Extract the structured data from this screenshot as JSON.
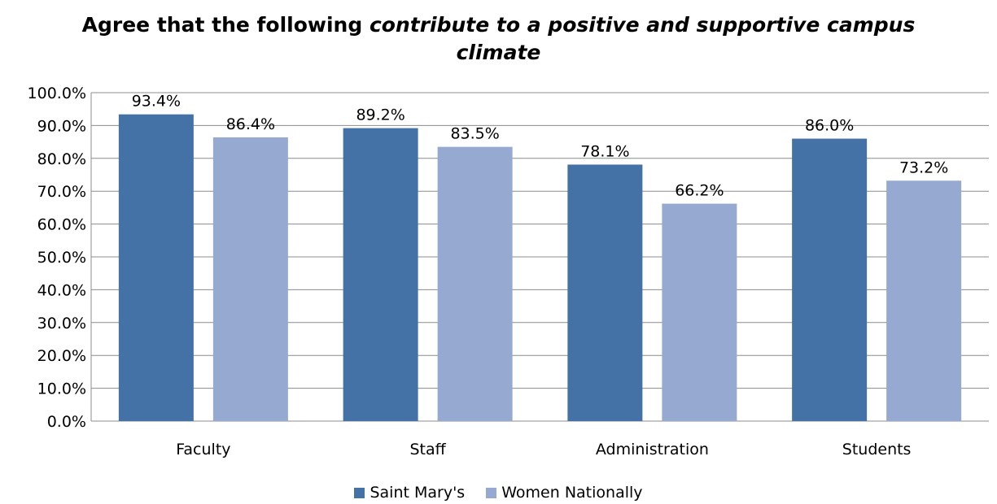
{
  "chart_data": {
    "type": "bar",
    "title_prefix": "Agree that the following ",
    "title_emphasis_1": "contribute to a positive and supportive campus",
    "title_emphasis_2": "climate",
    "categories": [
      "Faculty",
      "Staff",
      "Administration",
      "Students"
    ],
    "series": [
      {
        "name": "Saint Mary's",
        "values": [
          93.4,
          89.2,
          78.1,
          86.0
        ],
        "labels": [
          "93.4%",
          "89.2%",
          "78.1%",
          "86.0%"
        ],
        "color": "#4471A6"
      },
      {
        "name": "Women Nationally",
        "values": [
          86.4,
          83.5,
          66.2,
          73.2
        ],
        "labels": [
          "86.4%",
          "83.5%",
          "66.2%",
          "73.2%"
        ],
        "color": "#95A9D1"
      }
    ],
    "ylim": [
      0,
      100
    ],
    "yticks": [
      "0.0%",
      "10.0%",
      "20.0%",
      "30.0%",
      "40.0%",
      "50.0%",
      "60.0%",
      "70.0%",
      "80.0%",
      "90.0%",
      "100.0%"
    ],
    "grid": true,
    "legend_position": "bottom"
  }
}
